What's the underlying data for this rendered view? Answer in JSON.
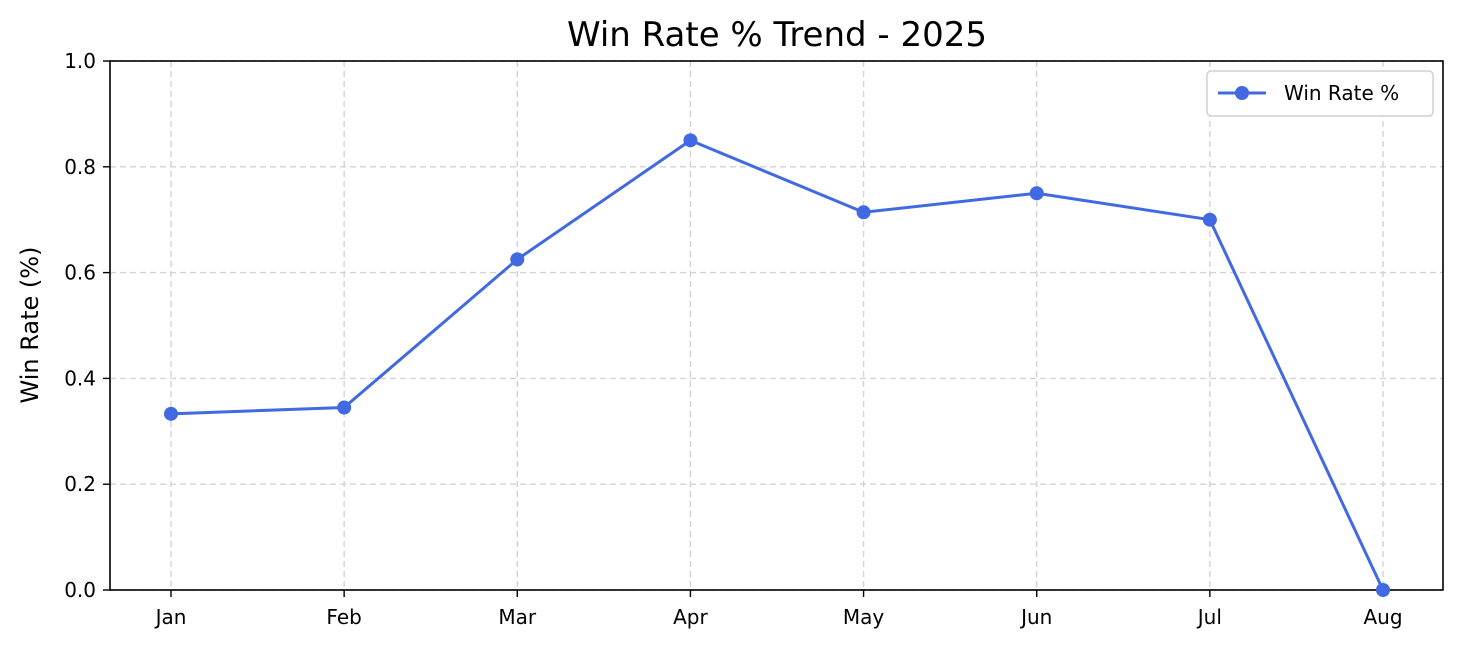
{
  "chart_data": {
    "type": "line",
    "title": "Win Rate % Trend - 2025",
    "xlabel": "",
    "ylabel": "Win Rate (%)",
    "categories": [
      "Jan",
      "Feb",
      "Mar",
      "Apr",
      "May",
      "Jun",
      "Jul",
      "Aug"
    ],
    "series": [
      {
        "name": "Win Rate %",
        "values": [
          0.333,
          0.345,
          0.625,
          0.85,
          0.714,
          0.75,
          0.7,
          0.0
        ],
        "color": "#4169e1",
        "marker": "circle"
      }
    ],
    "ylim": [
      0.0,
      1.0
    ],
    "yticks": [
      "0.0",
      "0.2",
      "0.4",
      "0.6",
      "0.8",
      "1.0"
    ],
    "grid": true,
    "grid_style": "dashed",
    "legend_position": "top-right"
  }
}
